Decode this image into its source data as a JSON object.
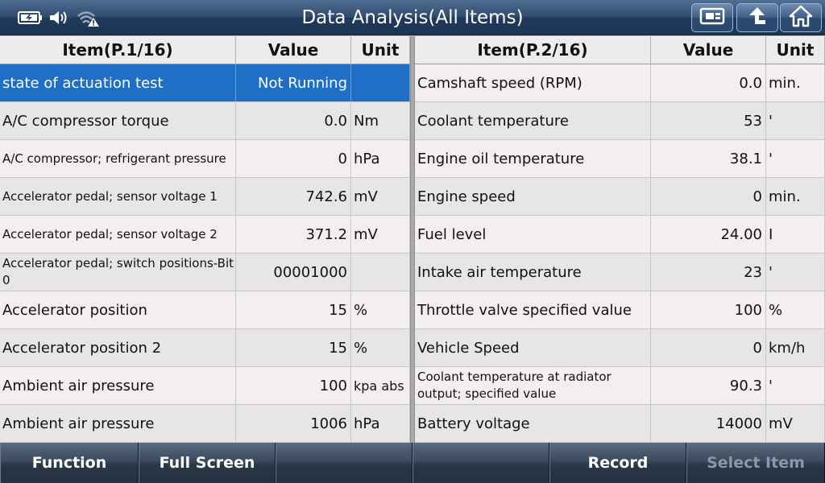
{
  "header": {
    "title": "Data Analysis(All Items)",
    "status_icons": [
      "battery-icon",
      "speaker-icon",
      "wifi-warning-icon"
    ],
    "buttons": [
      "snapshot-icon",
      "back-arrow-icon",
      "home-icon"
    ]
  },
  "left_table": {
    "columns": [
      "Item(P.1/16)",
      "Value",
      "Unit"
    ],
    "rows": [
      {
        "item": "state of actuation test",
        "value": "Not Running",
        "unit": ""
      },
      {
        "item": "A/C compressor torque",
        "value": "0.0",
        "unit": "Nm"
      },
      {
        "item": "A/C compressor; refrigerant pressure",
        "value": "0",
        "unit": "hPa"
      },
      {
        "item": "Accelerator pedal; sensor voltage 1",
        "value": "742.6",
        "unit": "mV"
      },
      {
        "item": "Accelerator pedal; sensor voltage 2",
        "value": "371.2",
        "unit": "mV"
      },
      {
        "item": "Accelerator pedal; switch positions-Bit 0",
        "value": "00001000",
        "unit": ""
      },
      {
        "item": "Accelerator position",
        "value": "15",
        "unit": "%"
      },
      {
        "item": "Accelerator position 2",
        "value": "15",
        "unit": "%"
      },
      {
        "item": "Ambient air pressure",
        "value": "100",
        "unit": "kpa abs"
      },
      {
        "item": "Ambient air pressure",
        "value": "1006",
        "unit": "hPa"
      }
    ]
  },
  "right_table": {
    "columns": [
      "Item(P.2/16)",
      "Value",
      "Unit"
    ],
    "rows": [
      {
        "item": "Camshaft speed (RPM)",
        "value": "0.0",
        "unit": "min."
      },
      {
        "item": "Coolant temperature",
        "value": "53",
        "unit": "'"
      },
      {
        "item": "Engine oil temperature",
        "value": "38.1",
        "unit": "'"
      },
      {
        "item": "Engine speed",
        "value": "0",
        "unit": "min."
      },
      {
        "item": "Fuel level",
        "value": "24.00",
        "unit": "I"
      },
      {
        "item": "Intake air temperature",
        "value": "23",
        "unit": "'"
      },
      {
        "item": "Throttle valve specified value",
        "value": "100",
        "unit": "%"
      },
      {
        "item": "Vehicle Speed",
        "value": "0",
        "unit": "km/h"
      },
      {
        "item": "Coolant temperature at radiator output; specified value",
        "value": "90.3",
        "unit": "'"
      },
      {
        "item": "Battery voltage",
        "value": "14000",
        "unit": "mV"
      }
    ]
  },
  "bottom_bar": {
    "function_label": "Function",
    "fullscreen_label": "Full Screen",
    "empty1_label": "",
    "empty2_label": "",
    "record_label": "Record",
    "select_item_label": "Select Item"
  },
  "colors": {
    "selected_row": "#1f6fc6",
    "topbar": "#2f4a6c"
  }
}
